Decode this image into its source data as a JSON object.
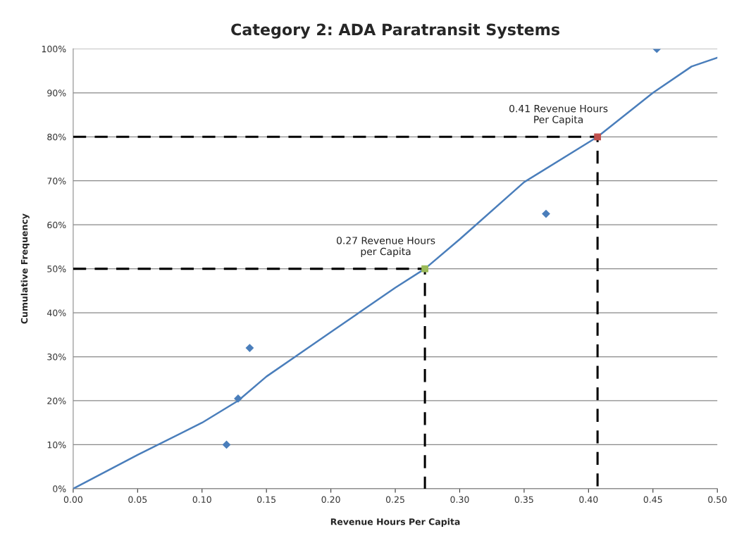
{
  "chart_data": {
    "type": "line",
    "title": "Category 2: ADA Paratransit Systems",
    "xlabel": "Revenue Hours Per Capita",
    "ylabel": "Cumulative Frequency",
    "xlim": [
      0,
      0.5
    ],
    "ylim": [
      0,
      100
    ],
    "xticks": [
      {
        "value": 0,
        "label": "0.00"
      },
      {
        "value": 0.05,
        "label": "0.05"
      },
      {
        "value": 0.1,
        "label": "0.10"
      },
      {
        "value": 0.15,
        "label": "0.15"
      },
      {
        "value": 0.2,
        "label": "0.20"
      },
      {
        "value": 0.25,
        "label": "0.25"
      },
      {
        "value": 0.3,
        "label": "0.30"
      },
      {
        "value": 0.35,
        "label": "0.35"
      },
      {
        "value": 0.4,
        "label": "0.40"
      },
      {
        "value": 0.45,
        "label": "0.45"
      },
      {
        "value": 0.5,
        "label": "0.50"
      }
    ],
    "yticks": [
      {
        "value": 0,
        "label": "0%"
      },
      {
        "value": 10,
        "label": "10%"
      },
      {
        "value": 20,
        "label": "20%"
      },
      {
        "value": 30,
        "label": "30%"
      },
      {
        "value": 40,
        "label": "40%"
      },
      {
        "value": 50,
        "label": "50%"
      },
      {
        "value": 60,
        "label": "60%"
      },
      {
        "value": 70,
        "label": "70%"
      },
      {
        "value": 80,
        "label": "80%"
      },
      {
        "value": 90,
        "label": "90%"
      },
      {
        "value": 100,
        "label": "100%"
      }
    ],
    "grid": "y",
    "series": [
      {
        "color": "#4a7ebb",
        "marker": "none",
        "line_style": "solid",
        "x": [
          0,
          0.05,
          0.1,
          0.128,
          0.15,
          0.2,
          0.25,
          0.273,
          0.3,
          0.35,
          0.407,
          0.45,
          0.48,
          0.5
        ],
        "values": [
          0,
          7.7,
          15,
          20,
          25.5,
          35.6,
          45.7,
          50,
          56.7,
          69.7,
          80,
          90,
          96,
          98
        ]
      },
      {
        "type": "scatter",
        "color": "#4a7ebb",
        "marker": "diamond",
        "x": [
          0.119,
          0.128,
          0.137,
          0.367,
          0.453
        ],
        "values": [
          10,
          20.5,
          32,
          62.5,
          100
        ]
      },
      {
        "type": "line",
        "color": "#000000",
        "marker": "none",
        "line_style": "dashed",
        "x": [
          0,
          0.273,
          0.273
        ],
        "values": [
          50,
          50,
          0
        ]
      },
      {
        "type": "line",
        "color": "#000000",
        "marker": "none",
        "line_style": "dashed",
        "x": [
          0,
          0.407,
          0.407
        ],
        "values": [
          80,
          80,
          0
        ]
      },
      {
        "type": "scatter",
        "color": "#9bbb59",
        "marker": "square",
        "x": [
          0.273
        ],
        "values": [
          50
        ]
      },
      {
        "type": "scatter",
        "color": "#c0504d",
        "marker": "square",
        "x": [
          0.407
        ],
        "values": [
          80
        ]
      }
    ],
    "annotations": [
      {
        "text": "0.27 Revenue Hours\nper Capita",
        "x": 0.273,
        "y": 50
      },
      {
        "text": "0.41 Revenue Hours\nPer Capita",
        "x": 0.407,
        "y": 80
      }
    ]
  }
}
